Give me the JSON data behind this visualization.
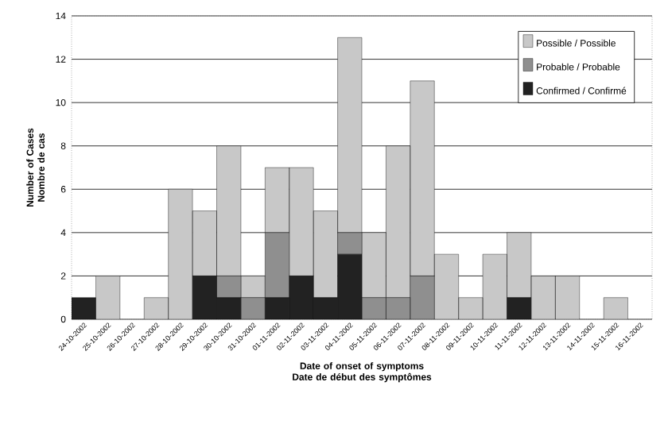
{
  "chart_data": {
    "type": "bar",
    "stacked": true,
    "xlabel": "Date of onset of symptoms\nDate de début des symptômes",
    "ylabel": "Number of Cases\nNombre de cas",
    "categories": [
      "24-10-2002",
      "25-10-2002",
      "26-10-2002",
      "27-10-2002",
      "28-10-2002",
      "29-10-2002",
      "30-10-2002",
      "31-10-2002",
      "01-11-2002",
      "02-11-2002",
      "03-11-2002",
      "04-11-2002",
      "05-11-2002",
      "06-11-2002",
      "07-11-2002",
      "08-11-2002",
      "09-11-2002",
      "10-11-2002",
      "11-11-2002",
      "12-11-2002",
      "13-11-2002",
      "14-11-2002",
      "15-11-2002",
      "16-11-2002"
    ],
    "series": [
      {
        "name": "Confirmed / Confirmé",
        "color": "#222222",
        "values": [
          1,
          0,
          0,
          0,
          0,
          2,
          1,
          0,
          1,
          2,
          1,
          3,
          0,
          0,
          0,
          0,
          0,
          0,
          1,
          0,
          0,
          0,
          0,
          0
        ]
      },
      {
        "name": "Probable / Probable",
        "color": "#8f8f8f",
        "values": [
          0,
          0,
          0,
          0,
          0,
          0,
          1,
          1,
          3,
          0,
          0,
          1,
          1,
          1,
          2,
          0,
          0,
          0,
          0,
          0,
          0,
          0,
          0,
          0
        ]
      },
      {
        "name": "Possible / Possible",
        "color": "#c8c8c8",
        "values": [
          0,
          2,
          0,
          1,
          6,
          3,
          6,
          1,
          3,
          5,
          4,
          9,
          3,
          7,
          9,
          3,
          1,
          3,
          3,
          2,
          2,
          0,
          1,
          0
        ]
      }
    ],
    "ylim": [
      0,
      14
    ],
    "yticks": [
      0,
      2,
      4,
      6,
      8,
      10,
      12,
      14
    ],
    "grid": "y",
    "legend": "top right"
  }
}
